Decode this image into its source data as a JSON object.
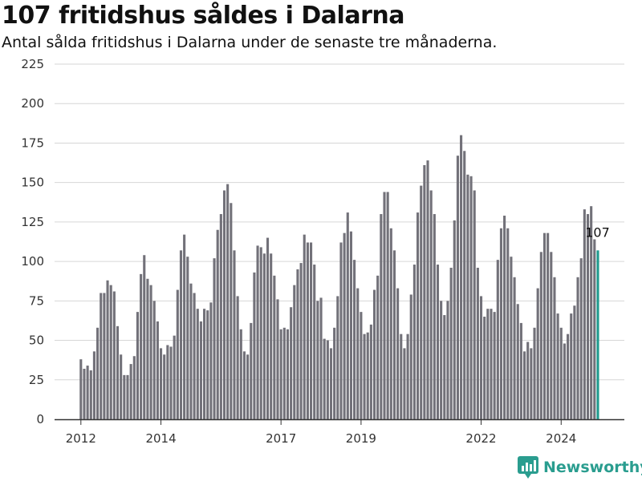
{
  "chart_data": {
    "type": "bar",
    "title": "107 fritidshus såldes i Dalarna",
    "subtitle": "Antal sålda fritidshus i Dalarna under de senaste tre månaderna.",
    "xlabel": "",
    "ylabel": "",
    "ylim": [
      0,
      225
    ],
    "yticks": [
      0,
      25,
      50,
      75,
      100,
      125,
      150,
      175,
      200,
      225
    ],
    "grid": true,
    "legend": "none",
    "x_start": "2012-01",
    "x_frequency": "monthly",
    "xticks": [
      {
        "label": "2012",
        "period": "2012-01"
      },
      {
        "label": "2014",
        "period": "2014-01"
      },
      {
        "label": "2017",
        "period": "2017-01"
      },
      {
        "label": "2019",
        "period": "2019-01"
      },
      {
        "label": "2022",
        "period": "2022-01"
      },
      {
        "label": "2024",
        "period": "2024-01"
      }
    ],
    "values": [
      38,
      32,
      34,
      31,
      43,
      58,
      80,
      80,
      88,
      85,
      81,
      59,
      41,
      28,
      28,
      35,
      40,
      68,
      92,
      104,
      89,
      85,
      75,
      62,
      45,
      41,
      47,
      46,
      53,
      82,
      107,
      117,
      103,
      86,
      80,
      70,
      62,
      70,
      69,
      74,
      102,
      120,
      130,
      145,
      149,
      137,
      107,
      78,
      57,
      43,
      41,
      61,
      93,
      110,
      109,
      105,
      115,
      105,
      91,
      76,
      57,
      58,
      57,
      71,
      85,
      95,
      99,
      117,
      112,
      112,
      98,
      75,
      77,
      51,
      50,
      45,
      58,
      78,
      112,
      118,
      131,
      119,
      101,
      83,
      68,
      54,
      55,
      60,
      82,
      91,
      130,
      144,
      144,
      121,
      107,
      83,
      54,
      45,
      54,
      79,
      98,
      131,
      148,
      161,
      164,
      145,
      130,
      98,
      75,
      66,
      75,
      96,
      126,
      167,
      180,
      170,
      155,
      154,
      145,
      96,
      78,
      65,
      70,
      70,
      68,
      101,
      121,
      129,
      121,
      103,
      90,
      73,
      61,
      43,
      49,
      45,
      58,
      83,
      106,
      118,
      118,
      106,
      90,
      67,
      58,
      48,
      54,
      67,
      72,
      90,
      102,
      133,
      130,
      135,
      114,
      107
    ],
    "highlight_index": 155,
    "colors": {
      "bar": "#727179",
      "highlight": "#1f9a8e",
      "grid": "#d6d6d6",
      "axis": "#333333"
    },
    "annotation": {
      "text": "107",
      "index": 155
    }
  },
  "branding": {
    "name": "Newsworthy",
    "icon": "chart-logo-icon",
    "color": "#2a9d8f"
  }
}
